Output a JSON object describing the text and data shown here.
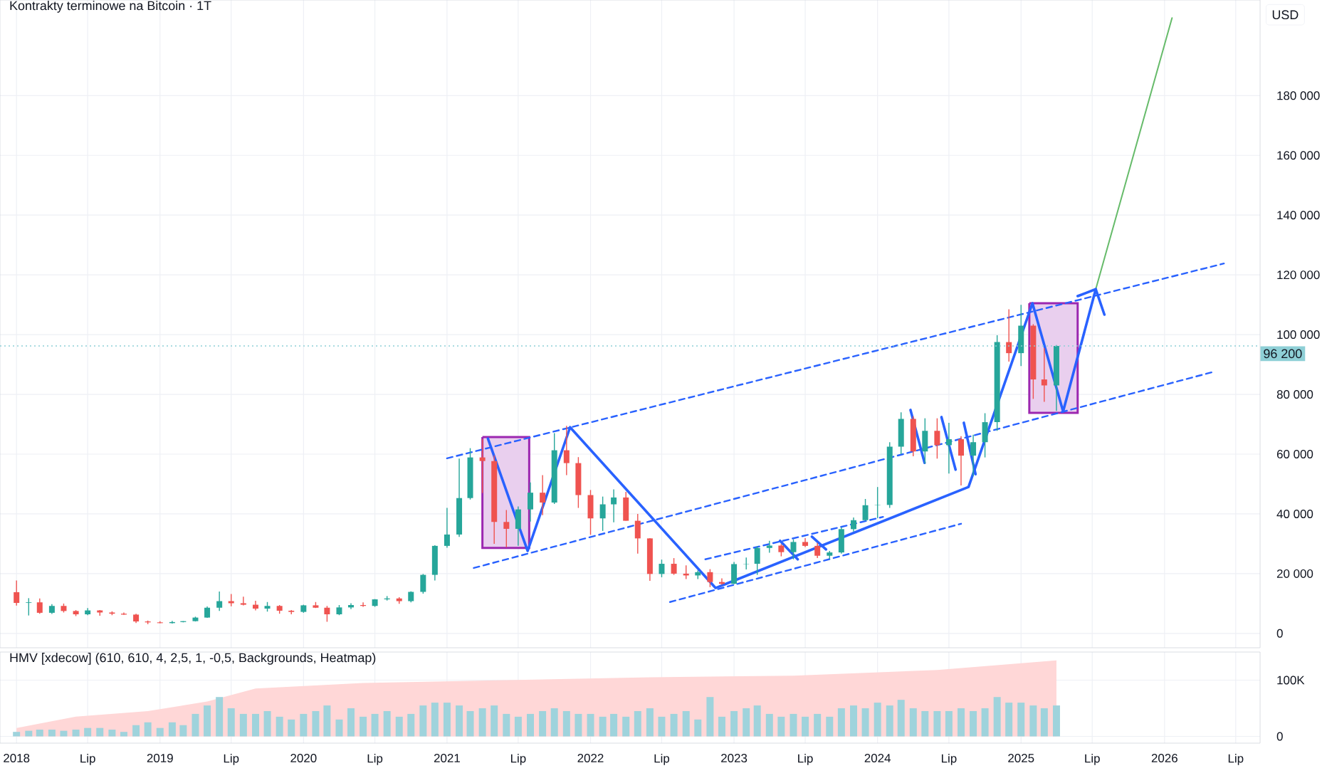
{
  "chart_data": [
    {
      "type": "candlestick",
      "title": "Kontrakty terminowe na Bitcoin · 1T",
      "x": [
        "2018-01",
        "2018-02",
        "2018-03",
        "2018-04",
        "2018-05",
        "2018-06",
        "2018-07",
        "2018-08",
        "2018-09",
        "2018-10",
        "2018-11",
        "2018-12",
        "2019-01",
        "2019-02",
        "2019-03",
        "2019-04",
        "2019-05",
        "2019-06",
        "2019-07",
        "2019-08",
        "2019-09",
        "2019-10",
        "2019-11",
        "2019-12",
        "2020-01",
        "2020-02",
        "2020-03",
        "2020-04",
        "2020-05",
        "2020-06",
        "2020-07",
        "2020-08",
        "2020-09",
        "2020-10",
        "2020-11",
        "2020-12",
        "2021-01",
        "2021-02",
        "2021-03",
        "2021-04",
        "2021-05",
        "2021-06",
        "2021-07",
        "2021-08",
        "2021-09",
        "2021-10",
        "2021-11",
        "2021-12",
        "2022-01",
        "2022-02",
        "2022-03",
        "2022-04",
        "2022-05",
        "2022-06",
        "2022-07",
        "2022-08",
        "2022-09",
        "2022-10",
        "2022-11",
        "2022-12",
        "2023-01",
        "2023-02",
        "2023-03",
        "2023-04",
        "2023-05",
        "2023-06",
        "2023-07",
        "2023-08",
        "2023-09",
        "2023-10",
        "2023-11",
        "2023-12",
        "2024-01",
        "2024-02",
        "2024-03",
        "2024-04",
        "2024-05",
        "2024-06",
        "2024-07",
        "2024-08",
        "2024-09",
        "2024-10",
        "2024-11",
        "2024-12",
        "2025-01",
        "2025-02",
        "2025-03",
        "2025-04"
      ],
      "ohlc": [
        [
          13800,
          17700,
          9300,
          10200
        ],
        [
          10200,
          11800,
          6000,
          10400
        ],
        [
          10400,
          11700,
          6600,
          6900
        ],
        [
          6900,
          9800,
          6500,
          9200
        ],
        [
          9200,
          10000,
          7000,
          7500
        ],
        [
          7500,
          7800,
          5800,
          6400
        ],
        [
          6400,
          8500,
          6100,
          7700
        ],
        [
          7700,
          7800,
          5900,
          7000
        ],
        [
          7000,
          7400,
          6100,
          6600
        ],
        [
          6600,
          7000,
          6200,
          6300
        ],
        [
          6300,
          6600,
          3500,
          4000
        ],
        [
          4000,
          4300,
          3100,
          3700
        ],
        [
          3700,
          4100,
          3400,
          3450
        ],
        [
          3450,
          4200,
          3300,
          3800
        ],
        [
          3800,
          4100,
          3700,
          4100
        ],
        [
          4100,
          5600,
          4000,
          5300
        ],
        [
          5300,
          9000,
          5200,
          8600
        ],
        [
          8600,
          14000,
          7500,
          10800
        ],
        [
          10800,
          13200,
          9100,
          10100
        ],
        [
          10100,
          12300,
          9400,
          9600
        ],
        [
          9600,
          10900,
          7700,
          8300
        ],
        [
          8300,
          10500,
          7300,
          9200
        ],
        [
          9200,
          9500,
          6600,
          7600
        ],
        [
          7600,
          7800,
          6400,
          7200
        ],
        [
          7200,
          9600,
          6900,
          9400
        ],
        [
          9400,
          10500,
          8500,
          8600
        ],
        [
          8600,
          9200,
          3900,
          6400
        ],
        [
          6400,
          9500,
          6100,
          8700
        ],
        [
          8700,
          10100,
          8100,
          9500
        ],
        [
          9500,
          10400,
          8900,
          9200
        ],
        [
          9200,
          11500,
          8900,
          11400
        ],
        [
          11400,
          12500,
          11000,
          11700
        ],
        [
          11700,
          12100,
          9900,
          10800
        ],
        [
          10800,
          14100,
          10400,
          13900
        ],
        [
          13900,
          19900,
          13300,
          19600
        ],
        [
          19600,
          29500,
          17700,
          29300
        ],
        [
          29300,
          42000,
          28700,
          33100
        ],
        [
          33100,
          58500,
          32300,
          45300
        ],
        [
          45300,
          62000,
          44800,
          58900
        ],
        [
          58900,
          65000,
          47000,
          57700
        ],
        [
          57700,
          59600,
          30000,
          37300
        ],
        [
          37300,
          41300,
          28800,
          35000
        ],
        [
          35000,
          42500,
          29300,
          41500
        ],
        [
          41500,
          50500,
          37400,
          47100
        ],
        [
          47100,
          53000,
          39600,
          43800
        ],
        [
          43800,
          67000,
          43300,
          61300
        ],
        [
          61300,
          69500,
          53000,
          57000
        ],
        [
          57000,
          59000,
          42000,
          46300
        ],
        [
          46300,
          48000,
          33000,
          38500
        ],
        [
          38500,
          45800,
          34300,
          43200
        ],
        [
          43200,
          48200,
          37200,
          45500
        ],
        [
          45500,
          47400,
          37700,
          37700
        ],
        [
          37700,
          40000,
          26700,
          31800
        ],
        [
          31800,
          31900,
          17600,
          19900
        ],
        [
          19900,
          24700,
          18800,
          23300
        ],
        [
          23300,
          25200,
          19600,
          20000
        ],
        [
          20000,
          22800,
          18200,
          19400
        ],
        [
          19400,
          21100,
          18200,
          20500
        ],
        [
          20500,
          21500,
          15500,
          17200
        ],
        [
          17200,
          18400,
          16300,
          16600
        ],
        [
          16600,
          23900,
          16500,
          23200
        ],
        [
          23200,
          25400,
          21400,
          23300
        ],
        [
          23300,
          29200,
          19600,
          28600
        ],
        [
          28600,
          31000,
          27000,
          29400
        ],
        [
          29400,
          29900,
          25800,
          27200
        ],
        [
          27200,
          31500,
          24800,
          30600
        ],
        [
          30600,
          31900,
          28900,
          29300
        ],
        [
          29300,
          30300,
          25200,
          26000
        ],
        [
          26000,
          27600,
          24900,
          27100
        ],
        [
          27100,
          35500,
          26700,
          34900
        ],
        [
          34900,
          38800,
          34100,
          37900
        ],
        [
          37900,
          45000,
          37700,
          42900
        ],
        [
          42900,
          49000,
          38600,
          43000
        ],
        [
          43000,
          64000,
          42000,
          62500
        ],
        [
          62500,
          74000,
          60000,
          71800
        ],
        [
          71800,
          72700,
          59300,
          60900
        ],
        [
          60900,
          72000,
          56800,
          67800
        ],
        [
          67800,
          72000,
          58500,
          63000
        ],
        [
          63000,
          70500,
          53500,
          65000
        ],
        [
          65000,
          66000,
          49500,
          59500
        ],
        [
          59500,
          66500,
          52700,
          64000
        ],
        [
          64000,
          73700,
          58900,
          70700
        ],
        [
          70700,
          99800,
          67800,
          97500
        ],
        [
          97500,
          108500,
          91000,
          93800
        ],
        [
          93800,
          110000,
          89500,
          103000
        ],
        [
          103000,
          103500,
          78500,
          85000
        ],
        [
          85000,
          95500,
          77500,
          83000
        ],
        [
          83000,
          96500,
          74500,
          96200
        ]
      ],
      "colors": [
        "#ef5350",
        "#26a69a",
        "#ef5350",
        "#26a69a",
        "#ef5350",
        "#ef5350",
        "#26a69a",
        "#ef5350",
        "#ef5350",
        "#ef5350",
        "#ef5350",
        "#ef5350",
        "#ef5350",
        "#26a69a",
        "#26a69a",
        "#26a69a",
        "#26a69a",
        "#26a69a",
        "#ef5350",
        "#ef5350",
        "#ef5350",
        "#26a69a",
        "#ef5350",
        "#ef5350",
        "#26a69a",
        "#ef5350",
        "#ef5350",
        "#26a69a",
        "#26a69a",
        "#ef5350",
        "#26a69a",
        "#26a69a",
        "#ef5350",
        "#26a69a",
        "#26a69a",
        "#26a69a",
        "#26a69a",
        "#26a69a",
        "#26a69a",
        "#ef5350",
        "#ef5350",
        "#ef5350",
        "#26a69a",
        "#26a69a",
        "#ef5350",
        "#26a69a",
        "#ef5350",
        "#ef5350",
        "#ef5350",
        "#26a69a",
        "#26a69a",
        "#ef5350",
        "#ef5350",
        "#ef5350",
        "#26a69a",
        "#ef5350",
        "#ef5350",
        "#26a69a",
        "#ef5350",
        "#ef5350",
        "#26a69a",
        "#26a69a",
        "#26a69a",
        "#26a69a",
        "#ef5350",
        "#26a69a",
        "#ef5350",
        "#ef5350",
        "#26a69a",
        "#26a69a",
        "#26a69a",
        "#26a69a",
        "#26a69a",
        "#26a69a",
        "#26a69a",
        "#ef5350",
        "#26a69a",
        "#ef5350",
        "#26a69a",
        "#ef5350",
        "#26a69a",
        "#26a69a",
        "#26a69a",
        "#ef5350",
        "#26a69a",
        "#ef5350",
        "#ef5350",
        "#26a69a"
      ],
      "series": [
        {
          "type": "area",
          "color": "#9c27b0",
          "x": [
            "2021-04-01",
            "2021-07-29",
            "2021-07-29",
            "2021-04-01",
            "2021-04-01"
          ],
          "values": [
            65700,
            65700,
            28600,
            28600,
            65700
          ]
        },
        {
          "type": "area",
          "color": "#9c27b0",
          "x": [
            "2025-01-22",
            "2025-05-25",
            "2025-05-25",
            "2025-01-22",
            "2025-01-22"
          ],
          "values": [
            110500,
            110500,
            73800,
            73800,
            110500
          ]
        },
        {
          "type": "line",
          "color": "#2962ff",
          "line_style": "dashed",
          "x": [
            "2021-01-01",
            "2026-06-01"
          ],
          "values": [
            58600,
            123800
          ]
        },
        {
          "type": "line",
          "color": "#2962ff",
          "line_style": "dashed",
          "x": [
            "2021-03-10",
            "2026-05-07"
          ],
          "values": [
            21900,
            87600
          ]
        },
        {
          "type": "line",
          "color": "#2962ff",
          "line_style": "dashed",
          "x": [
            "2022-10-20",
            "2024-01-15"
          ],
          "values": [
            24800,
            39000
          ]
        },
        {
          "type": "line",
          "color": "#2962ff",
          "line_style": "dashed",
          "x": [
            "2022-07-22",
            "2024-08-01"
          ],
          "values": [
            10500,
            36700
          ]
        },
        {
          "type": "line",
          "color": "#66bb6a",
          "x": [
            "2025-07-10",
            "2026-01-20"
          ],
          "values": [
            115200,
            206000
          ]
        },
        {
          "type": "line",
          "color": "#2962ff",
          "x": [
            "2021-04-15",
            "2021-07-25",
            "2021-11-10",
            "2022-11-15",
            "2024-08-20",
            "2025-01-30",
            "2025-04-18",
            "2025-07-10",
            "2025-08-01"
          ],
          "values": [
            65200,
            27600,
            69000,
            15200,
            49000,
            110500,
            74300,
            115200,
            106700
          ]
        },
        {
          "type": "line",
          "color": "#2962ff",
          "x": [
            "2025-05-25",
            "2025-07-10"
          ],
          "values": [
            112900,
            115200
          ]
        },
        {
          "type": "line",
          "color": "#2962ff",
          "x": [
            "2023-04-28",
            "2023-06-12"
          ],
          "values": [
            31000,
            24800
          ]
        },
        {
          "type": "line",
          "color": "#2962ff",
          "x": [
            "2023-07-18",
            "2023-08-23"
          ],
          "values": [
            32400,
            28100
          ]
        },
        {
          "type": "line",
          "color": "#2962ff",
          "x": [
            "2024-03-25",
            "2024-04-30"
          ],
          "values": [
            74800,
            57100
          ]
        },
        {
          "type": "line",
          "color": "#2962ff",
          "x": [
            "2024-06-12",
            "2024-07-18"
          ],
          "values": [
            72400,
            54800
          ]
        },
        {
          "type": "line",
          "color": "#2962ff",
          "x": [
            "2024-08-08",
            "2024-09-07"
          ],
          "values": [
            70500,
            53300
          ]
        }
      ],
      "ref_lines": [
        {
          "axis": "y",
          "value": 96200,
          "label": "96 200",
          "color": "#8ecfd6",
          "line_style": "dotted"
        }
      ],
      "annotations": [
        "USD"
      ],
      "xlim": [
        "2017-11-20",
        "2026-09-01"
      ],
      "ylim": [
        -4800,
        212000
      ],
      "xticks": [
        {
          "value": "2018-01",
          "label": null
        },
        {
          "value": "2018-07",
          "label": null
        },
        {
          "value": "2019-01",
          "label": null
        },
        {
          "value": "2019-07",
          "label": null
        },
        {
          "value": "2020-01",
          "label": null
        },
        {
          "value": "2020-07",
          "label": null
        },
        {
          "value": "2021-01",
          "label": null
        },
        {
          "value": "2021-07",
          "label": null
        },
        {
          "value": "2022-01",
          "label": null
        },
        {
          "value": "2022-07",
          "label": null
        },
        {
          "value": "2023-01",
          "label": null
        },
        {
          "value": "2023-07",
          "label": null
        },
        {
          "value": "2024-01",
          "label": null
        },
        {
          "value": "2024-07",
          "label": null
        },
        {
          "value": "2025-01",
          "label": null
        },
        {
          "value": "2025-07",
          "label": null
        },
        {
          "value": "2026-01",
          "label": null
        },
        {
          "value": "2026-07",
          "label": null
        }
      ],
      "yticks": [
        0,
        {
          "value": 20000,
          "label": "20 000"
        },
        {
          "value": 40000,
          "label": "40 000"
        },
        {
          "value": 60000,
          "label": "60 000"
        },
        {
          "value": 80000,
          "label": "80 000"
        },
        {
          "value": 100000,
          "label": "100 000"
        },
        {
          "value": 120000,
          "label": "120 000"
        },
        {
          "value": 140000,
          "label": "140 000"
        },
        {
          "value": 160000,
          "label": "160 000"
        },
        {
          "value": 180000,
          "label": "180 000"
        }
      ],
      "tick_labels": "y",
      "grid": true
    },
    {
      "type": "bar",
      "title": "HMV [xdecow] (610, 610, 4, 2,5, 1, -0,5, Backgrounds, Heatmap)",
      "x": [
        "2018-01",
        "2018-02",
        "2018-03",
        "2018-04",
        "2018-05",
        "2018-06",
        "2018-07",
        "2018-08",
        "2018-09",
        "2018-10",
        "2018-11",
        "2018-12",
        "2019-01",
        "2019-02",
        "2019-03",
        "2019-04",
        "2019-05",
        "2019-06",
        "2019-07",
        "2019-08",
        "2019-09",
        "2019-10",
        "2019-11",
        "2019-12",
        "2020-01",
        "2020-02",
        "2020-03",
        "2020-04",
        "2020-05",
        "2020-06",
        "2020-07",
        "2020-08",
        "2020-09",
        "2020-10",
        "2020-11",
        "2020-12",
        "2021-01",
        "2021-02",
        "2021-03",
        "2021-04",
        "2021-05",
        "2021-06",
        "2021-07",
        "2021-08",
        "2021-09",
        "2021-10",
        "2021-11",
        "2021-12",
        "2022-01",
        "2022-02",
        "2022-03",
        "2022-04",
        "2022-05",
        "2022-06",
        "2022-07",
        "2022-08",
        "2022-09",
        "2022-10",
        "2022-11",
        "2022-12",
        "2023-01",
        "2023-02",
        "2023-03",
        "2023-04",
        "2023-05",
        "2023-06",
        "2023-07",
        "2023-08",
        "2023-09",
        "2023-10",
        "2023-11",
        "2023-12",
        "2024-01",
        "2024-02",
        "2024-03",
        "2024-04",
        "2024-05",
        "2024-06",
        "2024-07",
        "2024-08",
        "2024-09",
        "2024-10",
        "2024-11",
        "2024-12",
        "2025-01",
        "2025-02",
        "2025-03",
        "2025-04"
      ],
      "series": [
        {
          "type": "area",
          "color": "#ffd7d7",
          "x": [
            "2018-01",
            "2018-06",
            "2018-12",
            "2019-05",
            "2019-09",
            "2020-06",
            "2021-06",
            "2022-06",
            "2023-06",
            "2024-06",
            "2025-01",
            "2025-04"
          ],
          "values": [
            15000,
            35000,
            45000,
            62000,
            85000,
            95000,
            100000,
            105000,
            108000,
            118000,
            130000,
            135000
          ]
        },
        {
          "type": "bar",
          "color": "#9fd3dc",
          "values": [
            8000,
            10000,
            12000,
            12000,
            10000,
            12000,
            15000,
            15000,
            12000,
            8000,
            20000,
            25000,
            15000,
            25000,
            20000,
            40000,
            55000,
            70000,
            50000,
            40000,
            40000,
            45000,
            35000,
            30000,
            40000,
            45000,
            55000,
            30000,
            50000,
            35000,
            40000,
            45000,
            35000,
            40000,
            55000,
            60000,
            60000,
            55000,
            45000,
            50000,
            55000,
            40000,
            35000,
            40000,
            45000,
            50000,
            45000,
            40000,
            40000,
            35000,
            40000,
            35000,
            45000,
            50000,
            35000,
            40000,
            45000,
            30000,
            70000,
            35000,
            45000,
            50000,
            55000,
            40000,
            35000,
            40000,
            35000,
            40000,
            35000,
            50000,
            55000,
            50000,
            60000,
            55000,
            65000,
            50000,
            45000,
            45000,
            45000,
            50000,
            45000,
            50000,
            70000,
            60000,
            60000,
            55000,
            50000,
            55000
          ]
        }
      ],
      "xlim": [
        "2017-11-20",
        "2026-09-01"
      ],
      "ylim": [
        -12000,
        150000
      ],
      "xticks": [
        {
          "value": "2018-01",
          "label": "2018"
        },
        {
          "value": "2018-07",
          "label": "Lip"
        },
        {
          "value": "2019-01",
          "label": "2019"
        },
        {
          "value": "2019-07",
          "label": "Lip"
        },
        {
          "value": "2020-01",
          "label": "2020"
        },
        {
          "value": "2020-07",
          "label": "Lip"
        },
        {
          "value": "2021-01",
          "label": "2021"
        },
        {
          "value": "2021-07",
          "label": "Lip"
        },
        {
          "value": "2022-01",
          "label": "2022"
        },
        {
          "value": "2022-07",
          "label": "Lip"
        },
        {
          "value": "2023-01",
          "label": "2023"
        },
        {
          "value": "2023-07",
          "label": "Lip"
        },
        {
          "value": "2024-01",
          "label": "2024"
        },
        {
          "value": "2024-07",
          "label": "Lip"
        },
        {
          "value": "2025-01",
          "label": "2025"
        },
        {
          "value": "2025-07",
          "label": "Lip"
        },
        {
          "value": "2026-01",
          "label": "2026"
        },
        {
          "value": "2026-07",
          "label": "Lip"
        }
      ],
      "yticks": [
        0,
        {
          "value": 100000,
          "label": "100K"
        }
      ],
      "grid": true
    }
  ]
}
